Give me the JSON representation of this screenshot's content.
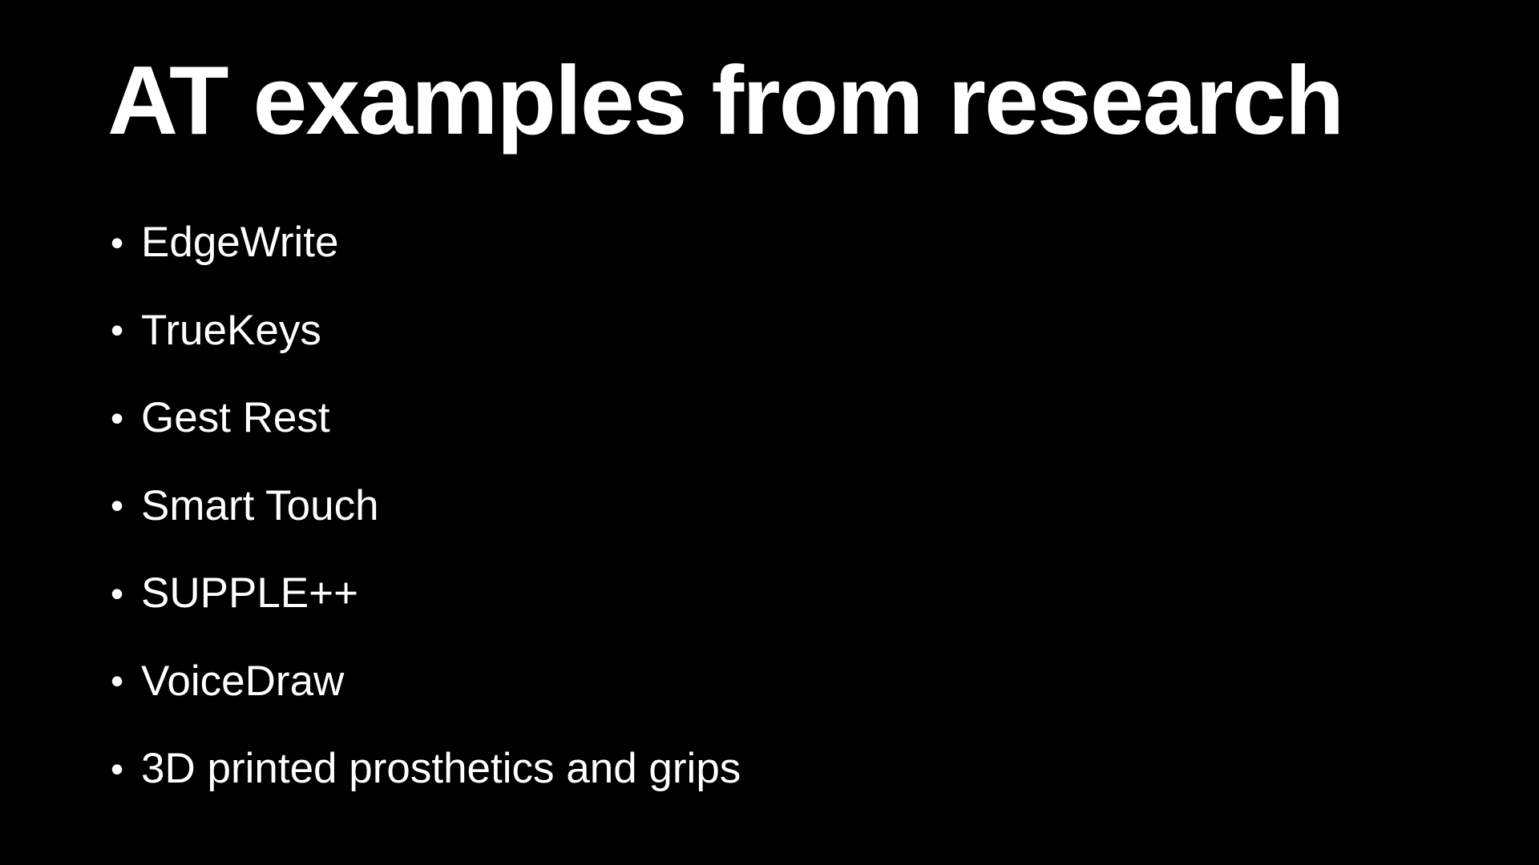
{
  "slide": {
    "title": "AT examples from research",
    "bullet_symbol": "•",
    "items": [
      "EdgeWrite",
      "TrueKeys",
      "Gest Rest",
      "Smart Touch",
      "SUPPLE++",
      "VoiceDraw",
      "3D printed prosthetics and grips"
    ]
  }
}
